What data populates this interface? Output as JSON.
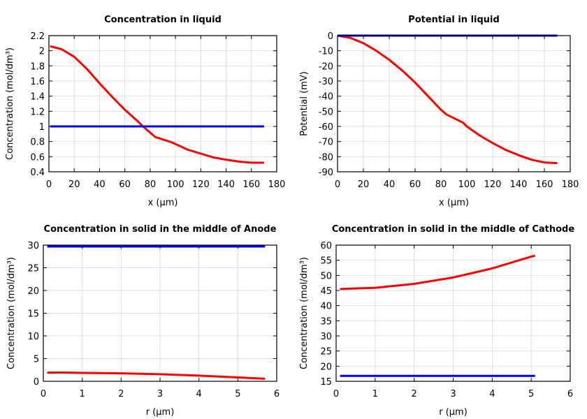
{
  "chart_data": [
    {
      "type": "line",
      "title": "Concentration in liquid",
      "xlabel": "x (µm)",
      "ylabel": "Concentration (mol/dm³)",
      "xlim": [
        0,
        180
      ],
      "ylim": [
        0.4,
        2.2
      ],
      "xticks": [
        0,
        20,
        40,
        60,
        80,
        100,
        120,
        140,
        160,
        180
      ],
      "yticks": [
        0.4,
        0.6,
        0.8,
        1,
        1.2,
        1.4,
        1.6,
        1.8,
        2,
        2.2
      ],
      "grid": true,
      "series": [
        {
          "color": "#ff0000",
          "x": [
            1,
            10,
            20,
            30,
            40,
            50,
            60,
            70,
            75,
            84,
            97,
            110,
            120,
            130,
            140,
            150,
            160,
            170
          ],
          "y": [
            2.06,
            2.02,
            1.92,
            1.76,
            1.57,
            1.39,
            1.22,
            1.07,
            0.99,
            0.86,
            0.79,
            0.69,
            0.64,
            0.59,
            0.56,
            0.535,
            0.52,
            0.52
          ]
        },
        {
          "color": "#0000ff",
          "x": [
            1,
            170
          ],
          "y": [
            1,
            1
          ]
        }
      ]
    },
    {
      "type": "line",
      "title": "Potential in liquid",
      "xlabel": "x (µm)",
      "ylabel": "Potential (mV)",
      "xlim": [
        0,
        180
      ],
      "ylim": [
        -90,
        0
      ],
      "xticks": [
        0,
        20,
        40,
        60,
        80,
        100,
        120,
        140,
        160,
        180
      ],
      "yticks": [
        -90,
        -80,
        -70,
        -60,
        -50,
        -40,
        -30,
        -20,
        -10,
        0
      ],
      "grid": true,
      "series": [
        {
          "color": "#ff0000",
          "x": [
            0,
            10,
            20,
            30,
            40,
            50,
            60,
            70,
            80,
            84,
            97,
            100,
            110,
            120,
            130,
            140,
            150,
            160,
            170
          ],
          "y": [
            0,
            -1.5,
            -5,
            -10,
            -16,
            -23,
            -31,
            -40,
            -49,
            -52,
            -57.5,
            -60,
            -66,
            -71,
            -75.5,
            -79,
            -82,
            -83.8,
            -84.3
          ]
        },
        {
          "color": "#0000ff",
          "x": [
            0,
            170
          ],
          "y": [
            0,
            0
          ]
        }
      ]
    },
    {
      "type": "line",
      "title": "Concentration in solid in the middle of Anode",
      "xlabel": "r (µm)",
      "ylabel": "Concentration (mol/dm³)",
      "xlim": [
        0,
        6
      ],
      "ylim": [
        0,
        30
      ],
      "xticks": [
        0,
        1,
        2,
        3,
        4,
        5,
        6
      ],
      "yticks": [
        0,
        5,
        10,
        15,
        20,
        25,
        30
      ],
      "grid": true,
      "series": [
        {
          "color": "#ff0000",
          "x": [
            0.1,
            0.5,
            1,
            2,
            3,
            4,
            5,
            5.7
          ],
          "y": [
            1.9,
            1.95,
            1.85,
            1.75,
            1.55,
            1.25,
            0.85,
            0.55
          ]
        },
        {
          "color": "#0000ff",
          "x": [
            0.1,
            5.7
          ],
          "y": [
            29.7,
            29.7
          ]
        }
      ]
    },
    {
      "type": "line",
      "title": "Concentration in solid in the middle of Cathode",
      "xlabel": "r (µm)",
      "ylabel": "Concentration (mol/dm³)",
      "xlim": [
        0,
        6
      ],
      "ylim": [
        15,
        60
      ],
      "xticks": [
        0,
        1,
        2,
        3,
        4,
        5,
        6
      ],
      "yticks": [
        15,
        20,
        25,
        30,
        35,
        40,
        45,
        50,
        55,
        60
      ],
      "grid": true,
      "series": [
        {
          "color": "#ff0000",
          "x": [
            0.1,
            1,
            2,
            3,
            4,
            5,
            5.1
          ],
          "y": [
            45.5,
            45.9,
            47.2,
            49.3,
            52.3,
            56.2,
            56.5
          ]
        },
        {
          "color": "#0000ff",
          "x": [
            0.1,
            5.1
          ],
          "y": [
            16.8,
            16.8
          ]
        }
      ]
    }
  ]
}
